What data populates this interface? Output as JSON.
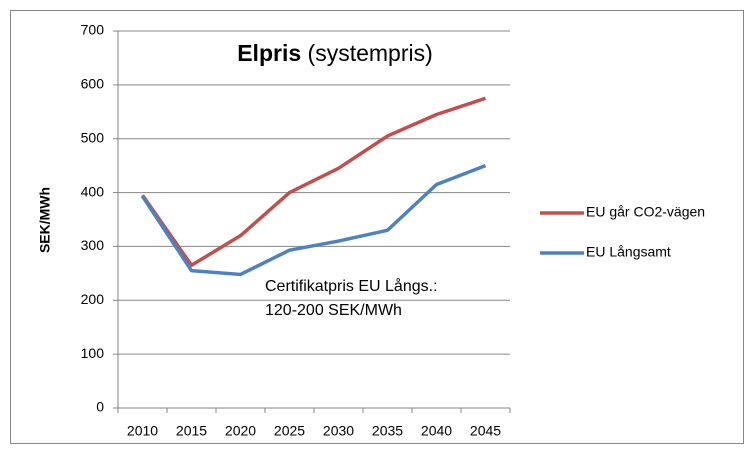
{
  "chart_data": {
    "type": "line",
    "title": [
      "Elpris",
      "(systempris)"
    ],
    "y_label": "SEK/MWh",
    "annotation": [
      "Certifikatpris EU Långs.:",
      "120-200 SEK/MWh"
    ],
    "categories": [
      "2010",
      "2015",
      "2020",
      "2025",
      "2030",
      "2035",
      "2040",
      "2045"
    ],
    "series": [
      {
        "name": "EU går CO2-vägen",
        "color": "#c0504d",
        "values": [
          395,
          265,
          320,
          400,
          445,
          505,
          545,
          575
        ]
      },
      {
        "name": "EU Långsamt",
        "color": "#4f81bd",
        "values": [
          393,
          255,
          248,
          293,
          310,
          330,
          415,
          450
        ]
      }
    ],
    "ylim": [
      0,
      700
    ],
    "yticks": [
      0,
      100,
      200,
      300,
      400,
      500,
      600,
      700
    ],
    "grid": true,
    "legend": "right"
  }
}
